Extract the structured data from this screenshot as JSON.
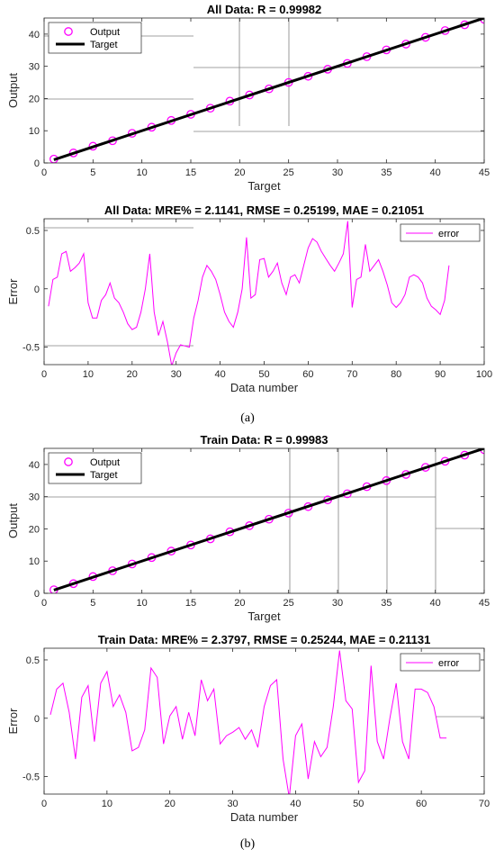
{
  "captions": {
    "a": "(a)",
    "b": "(b)"
  },
  "colors": {
    "magenta": "#ff00ff",
    "target": "#000000",
    "axis": "#262626",
    "grid": "#808080"
  },
  "chart_data": [
    {
      "type": "scatter",
      "title": "All Data: R = 0.99982",
      "xlabel": "Target",
      "ylabel": "Output",
      "xlim": [
        0,
        45
      ],
      "ylim": [
        0,
        45
      ],
      "xticks": [
        0,
        5,
        10,
        15,
        20,
        25,
        30,
        35,
        40,
        45
      ],
      "yticks": [
        0,
        10,
        20,
        30,
        40
      ],
      "legend": {
        "location": "top-left",
        "entries": [
          "Output",
          "Target"
        ]
      },
      "series": [
        {
          "name": "Output",
          "marker": "circle",
          "x": [
            1,
            3,
            5,
            7,
            9,
            11,
            13,
            15,
            17,
            19,
            21,
            23,
            25,
            27,
            29,
            31,
            33,
            35,
            37,
            39,
            41,
            43,
            45
          ],
          "y": [
            1.2,
            3.1,
            5.2,
            6.9,
            9.2,
            11.1,
            13.2,
            15.1,
            17.0,
            19.2,
            21.1,
            23.0,
            25.0,
            26.9,
            29.1,
            30.9,
            33.0,
            35.1,
            36.9,
            39.0,
            41.1,
            42.9,
            44.6
          ]
        },
        {
          "name": "Target",
          "line": true,
          "x": [
            1,
            45
          ],
          "y": [
            1,
            45
          ]
        }
      ]
    },
    {
      "type": "line",
      "title": "All Data: MRE% = 2.1141, RMSE = 0.25199, MAE = 0.21051",
      "xlabel": "Data number",
      "ylabel": "Error",
      "xlim": [
        0,
        100
      ],
      "ylim": [
        -0.65,
        0.6
      ],
      "xticks": [
        0,
        10,
        20,
        30,
        40,
        50,
        60,
        70,
        80,
        90,
        100
      ],
      "yticks": [
        -0.5,
        0,
        0.5
      ],
      "ytick_labels": [
        "-0.5",
        "0",
        "0.5"
      ],
      "legend": {
        "location": "top-right",
        "entries": [
          "error"
        ]
      },
      "series": [
        {
          "name": "error",
          "x": [
            1,
            2,
            3,
            4,
            5,
            6,
            7,
            8,
            9,
            10,
            11,
            12,
            13,
            14,
            15,
            16,
            17,
            18,
            19,
            20,
            21,
            22,
            23,
            24,
            25,
            26,
            27,
            28,
            29,
            30,
            31,
            32,
            33,
            34,
            35,
            36,
            37,
            38,
            39,
            40,
            41,
            42,
            43,
            44,
            45,
            46,
            47,
            48,
            49,
            50,
            51,
            52,
            53,
            54,
            55,
            56,
            57,
            58,
            59,
            60,
            61,
            62,
            63,
            64,
            65,
            66,
            67,
            68,
            69,
            70,
            71,
            72,
            73,
            74,
            75,
            76,
            77,
            78,
            79,
            80,
            81,
            82,
            83,
            84,
            85,
            86,
            87,
            88,
            89,
            90,
            91,
            92
          ],
          "y": [
            -0.15,
            0.08,
            0.1,
            0.3,
            0.32,
            0.15,
            0.18,
            0.22,
            0.3,
            -0.12,
            -0.25,
            -0.25,
            -0.1,
            -0.05,
            0.05,
            -0.08,
            -0.12,
            -0.2,
            -0.3,
            -0.35,
            -0.33,
            -0.2,
            0.0,
            0.3,
            -0.2,
            -0.4,
            -0.28,
            -0.45,
            -0.66,
            -0.55,
            -0.48,
            -0.49,
            -0.5,
            -0.25,
            -0.1,
            0.1,
            0.2,
            0.15,
            0.08,
            -0.05,
            -0.2,
            -0.28,
            -0.33,
            -0.2,
            0.0,
            0.44,
            -0.08,
            -0.05,
            0.25,
            0.26,
            0.1,
            0.15,
            0.22,
            0.05,
            -0.05,
            0.1,
            0.12,
            0.05,
            0.2,
            0.35,
            0.43,
            0.4,
            0.32,
            0.26,
            0.2,
            0.15,
            0.22,
            0.3,
            0.58,
            -0.16,
            0.08,
            0.1,
            0.38,
            0.15,
            0.2,
            0.25,
            0.15,
            0.03,
            -0.12,
            -0.16,
            -0.12,
            -0.05,
            0.1,
            0.12,
            0.1,
            0.05,
            -0.08,
            -0.15,
            -0.18,
            -0.22,
            -0.1,
            0.2
          ]
        }
      ]
    },
    {
      "type": "scatter",
      "title": "Train Data: R = 0.99983",
      "xlabel": "Target",
      "ylabel": "Output",
      "xlim": [
        0,
        45
      ],
      "ylim": [
        0,
        45
      ],
      "xticks": [
        0,
        5,
        10,
        15,
        20,
        25,
        30,
        35,
        40,
        45
      ],
      "yticks": [
        0,
        10,
        20,
        30,
        40
      ],
      "legend": {
        "location": "top-left",
        "entries": [
          "Output",
          "Target"
        ]
      },
      "series": [
        {
          "name": "Output",
          "marker": "circle",
          "x": [
            1,
            3,
            5,
            7,
            9,
            11,
            13,
            15,
            17,
            19,
            21,
            23,
            25,
            27,
            29,
            31,
            33,
            35,
            37,
            39,
            41,
            43,
            45
          ],
          "y": [
            1.1,
            3.0,
            5.2,
            7.0,
            9.1,
            11.1,
            13.1,
            15.0,
            16.9,
            19.1,
            21.0,
            23.0,
            24.9,
            26.9,
            29.0,
            30.9,
            33.1,
            35.0,
            36.9,
            39.1,
            41.0,
            42.9,
            44.6
          ]
        },
        {
          "name": "Target",
          "line": true,
          "x": [
            1,
            45
          ],
          "y": [
            1,
            45
          ]
        }
      ]
    },
    {
      "type": "line",
      "title": "Train Data: MRE% = 2.3797, RMSE = 0.25244, MAE = 0.21131",
      "xlabel": "Data number",
      "ylabel": "Error",
      "xlim": [
        0,
        70
      ],
      "ylim": [
        -0.65,
        0.6
      ],
      "xticks": [
        0,
        10,
        20,
        30,
        40,
        50,
        60,
        70
      ],
      "yticks": [
        -0.5,
        0,
        0.5
      ],
      "ytick_labels": [
        "-0.5",
        "0",
        "0.5"
      ],
      "legend": {
        "location": "top-right",
        "entries": [
          "error"
        ]
      },
      "series": [
        {
          "name": "error",
          "x": [
            1,
            2,
            3,
            4,
            5,
            6,
            7,
            8,
            9,
            10,
            11,
            12,
            13,
            14,
            15,
            16,
            17,
            18,
            19,
            20,
            21,
            22,
            23,
            24,
            25,
            26,
            27,
            28,
            29,
            30,
            31,
            32,
            33,
            34,
            35,
            36,
            37,
            38,
            39,
            40,
            41,
            42,
            43,
            44,
            45,
            46,
            47,
            48,
            49,
            50,
            51,
            52,
            53,
            54,
            55,
            56,
            57,
            58,
            59,
            60,
            61,
            62,
            63,
            64
          ],
          "y": [
            0.03,
            0.25,
            0.3,
            0.05,
            -0.35,
            0.18,
            0.28,
            -0.2,
            0.3,
            0.4,
            0.1,
            0.2,
            0.05,
            -0.28,
            -0.25,
            -0.1,
            0.43,
            0.35,
            -0.22,
            0.02,
            0.1,
            -0.18,
            0.05,
            -0.15,
            0.33,
            0.15,
            0.25,
            -0.22,
            -0.15,
            -0.12,
            -0.08,
            -0.18,
            -0.1,
            -0.25,
            0.1,
            0.28,
            0.33,
            -0.35,
            -0.68,
            -0.15,
            -0.05,
            -0.52,
            -0.2,
            -0.33,
            -0.25,
            0.1,
            0.58,
            0.15,
            0.08,
            -0.55,
            -0.45,
            0.45,
            -0.2,
            -0.35,
            0.0,
            0.3,
            -0.2,
            -0.35,
            0.25,
            0.25,
            0.22,
            0.1,
            -0.17,
            -0.17
          ]
        }
      ]
    }
  ]
}
